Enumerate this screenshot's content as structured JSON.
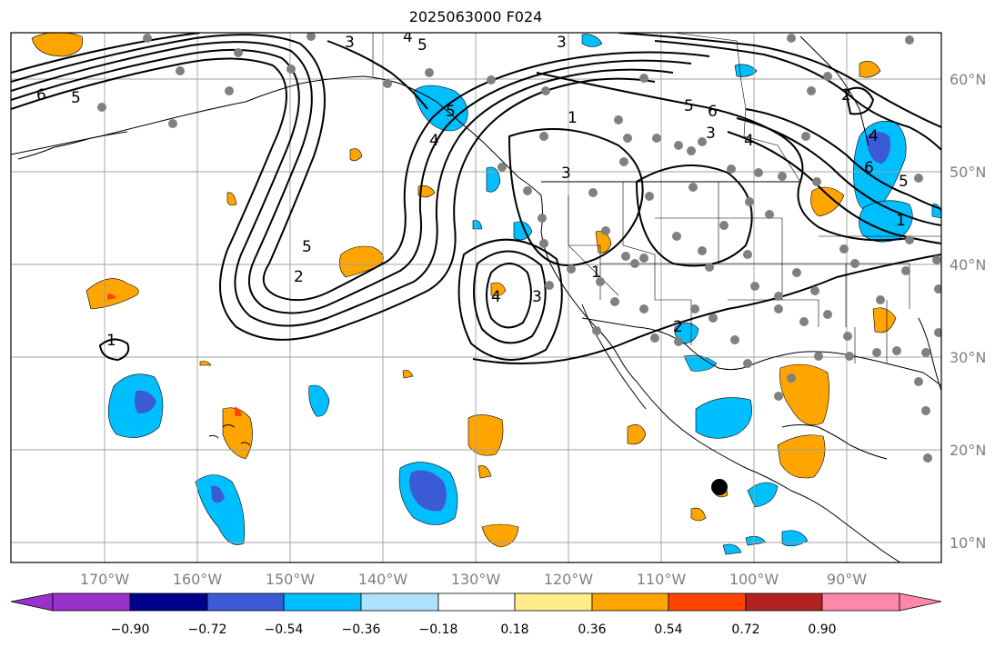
{
  "map": {
    "title": "2025063000 F024",
    "lon_ticks": [
      "170°W",
      "160°W",
      "150°W",
      "140°W",
      "130°W",
      "120°W",
      "110°W",
      "100°W",
      "90°W"
    ],
    "lat_ticks": [
      "60°N",
      "50°N",
      "40°N",
      "30°N",
      "20°N",
      "10°N"
    ],
    "extent": {
      "lon_min": -180,
      "lon_max": -79.5,
      "lat_min": 8,
      "lat_max": 65
    },
    "colors": {
      "frame": "#000000",
      "grid": "#a0a0a0",
      "tick_label": "#7f7f7f",
      "coast": "#000000",
      "station": "#808080",
      "contour": "#000000"
    },
    "colorbar": {
      "ticks": [
        "−0.90",
        "−0.72",
        "−0.54",
        "−0.36",
        "−0.18",
        "0.18",
        "0.36",
        "0.54",
        "0.72",
        "0.90"
      ],
      "colors": [
        "#9932cc",
        "#00008b",
        "#3b5bd6",
        "#00bfff",
        "#b0e0ff",
        "#ffffff",
        "#ffec8b",
        "#ffa500",
        "#ff4500",
        "#b22222",
        "#ff88aa"
      ]
    },
    "contour_labels": [
      "1",
      "2",
      "3",
      "4",
      "5",
      "6"
    ]
  }
}
